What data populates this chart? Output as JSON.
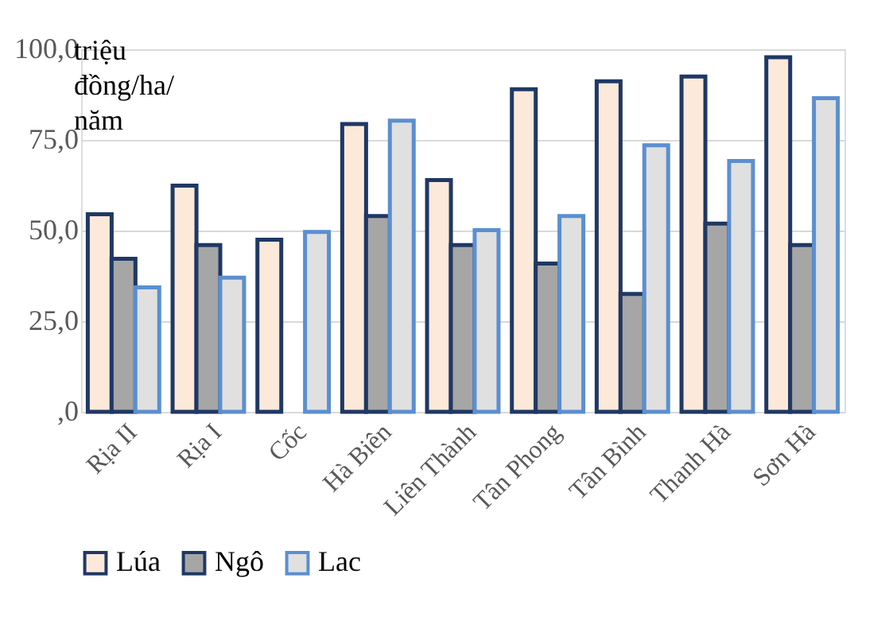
{
  "chart_data": {
    "type": "bar",
    "ylabel": "triệu đồng/ha/năm",
    "categories": [
      "Rịa II",
      "Rịa I",
      "Cốc",
      "Hà Biên",
      "Liên Thành",
      "Tân Phong",
      "Tân Bình",
      "Thanh Hà",
      "Sơn Hà"
    ],
    "series": [
      {
        "name": "Lúa",
        "color": "#fde9d9",
        "values": [
          54.5,
          62.4,
          47.5,
          79.4,
          63.9,
          89.0,
          91.2,
          92.5,
          97.8
        ]
      },
      {
        "name": "Ngô",
        "color": "#a6a6a6",
        "values": [
          42.2,
          46.0,
          null,
          54.0,
          46.0,
          40.9,
          32.5,
          51.9,
          46.0
        ]
      },
      {
        "name": "Lac",
        "color": "#e0e0e0",
        "values": [
          34.3,
          37.0,
          49.6,
          80.3,
          50.1,
          54.0,
          73.5,
          69.2,
          86.5
        ]
      }
    ],
    "ylim": [
      0,
      100
    ],
    "yticks": [
      {
        "value": 0,
        "label": ",0"
      },
      {
        "value": 25,
        "label": "25,0"
      },
      {
        "value": 50,
        "label": "50,0"
      },
      {
        "value": 75,
        "label": "75,0"
      },
      {
        "value": 100,
        "label": "100,0"
      }
    ],
    "grid": "y",
    "legend": "bottom"
  }
}
